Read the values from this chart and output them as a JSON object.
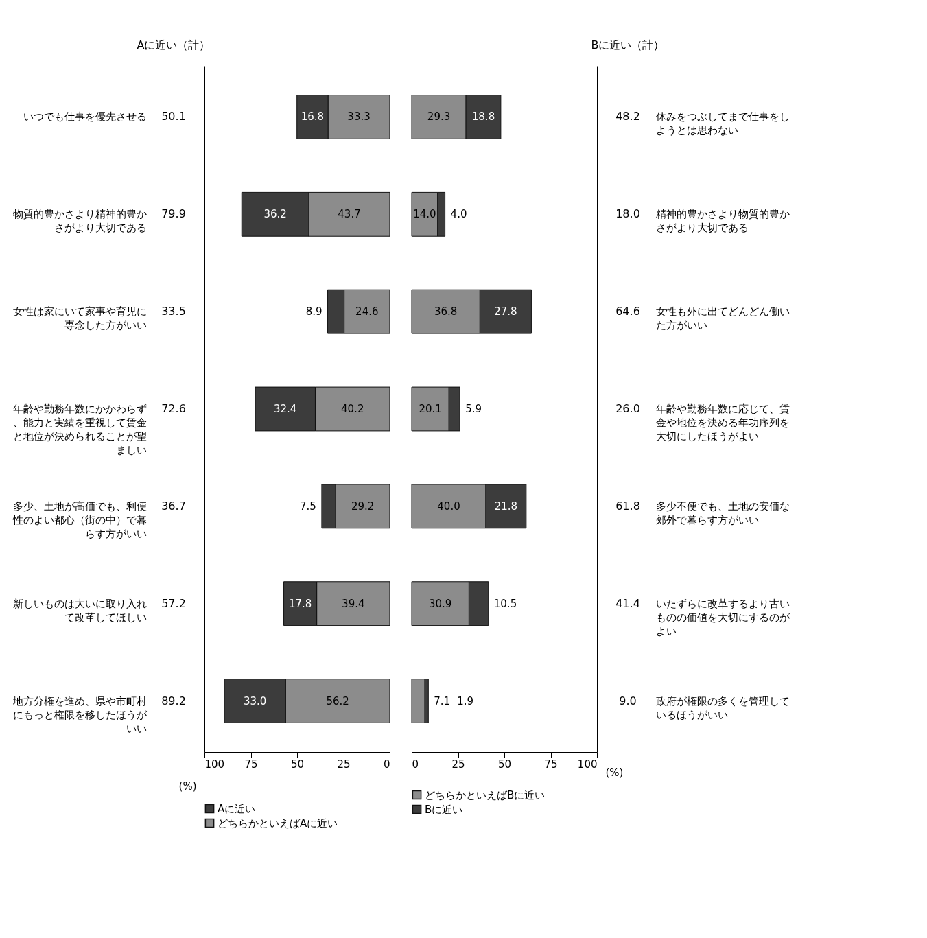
{
  "chart_data": [
    {
      "type": "bar",
      "orientation": "horizontal",
      "stacked": true,
      "categories": [
        "いつでも仕事を優先させる",
        "物質的豊かさより精神的豊かさがより大切である",
        "女性は家にいて家事や育児に専念した方がいい",
        "年齢や勤務年数にかかわらず、能力と実績を重視して賃金と地位が決められることが望ましい",
        "多少、土地が高価でも、利便性のよい都心（街の中）で暮らす方がいい",
        "新しいものは大いに取り入れて改革してほしい",
        "地方分権を進め、県や市町村にもっと権限を移したほうがいい"
      ],
      "series": [
        {
          "name": "どちらかといえばAに近い",
          "color": "#8c8c8c",
          "values": [
            33.3,
            43.7,
            24.6,
            40.2,
            29.2,
            39.4,
            56.2
          ],
          "value_labels": [
            "33.3",
            "43.7",
            "24.6",
            "40.2",
            "29.2",
            "39.4",
            "56.2"
          ]
        },
        {
          "name": "Aに近い",
          "color": "#3c3c3c",
          "values": [
            16.8,
            36.2,
            8.9,
            32.4,
            7.5,
            17.8,
            33.0
          ],
          "value_labels": [
            "16.8",
            "36.2",
            "8.9",
            "32.4",
            "7.5",
            "17.8",
            "33.0"
          ]
        }
      ],
      "xlim": [
        100,
        0
      ],
      "xticks": [
        100,
        75,
        50,
        25,
        0
      ],
      "xlabel": "(%)",
      "legend": "bottom",
      "annotations": [
        "Aに近い（計）",
        "50.1",
        "79.9",
        "33.5",
        "72.6",
        "36.7",
        "57.2",
        "89.2"
      ]
    },
    {
      "type": "bar",
      "orientation": "horizontal",
      "stacked": true,
      "categories": [
        "休みをつぶしてまで仕事をしようとは思わない",
        "精神的豊かさより物質的豊かさがより大切である",
        "女性も外に出てどんどん働いた方がいい",
        "年齢や勤務年数に応じて、賃金や地位を決める年功序列を大切にしたほうがよい",
        "多少不便でも、土地の安価な郊外で暮らす方がいい",
        "いたずらに改革するより古いものの価値を大切にするのがよい",
        "政府が権限の多くを管理しているほうがいい"
      ],
      "series": [
        {
          "name": "どちらかといえばBに近い",
          "color": "#8c8c8c",
          "values": [
            29.3,
            14.0,
            36.8,
            20.1,
            40.0,
            30.9,
            7.1
          ],
          "value_labels": [
            "29.3",
            "14.0",
            "36.8",
            "20.1",
            "40.0",
            "30.9",
            "7.1"
          ]
        },
        {
          "name": "Bに近い",
          "color": "#3c3c3c",
          "values": [
            18.8,
            4.0,
            27.8,
            5.9,
            21.8,
            10.5,
            1.9
          ],
          "value_labels": [
            "18.8",
            "4.0",
            "27.8",
            "5.9",
            "21.8",
            "10.5",
            "1.9"
          ]
        }
      ],
      "xlim": [
        0,
        100
      ],
      "xticks": [
        0,
        25,
        50,
        75,
        100
      ],
      "xlabel": "(%)",
      "legend": "bottom",
      "annotations": [
        "Bに近い（計）",
        "48.2",
        "18.0",
        "64.6",
        "26.0",
        "61.8",
        "41.4",
        "9.0"
      ]
    }
  ]
}
